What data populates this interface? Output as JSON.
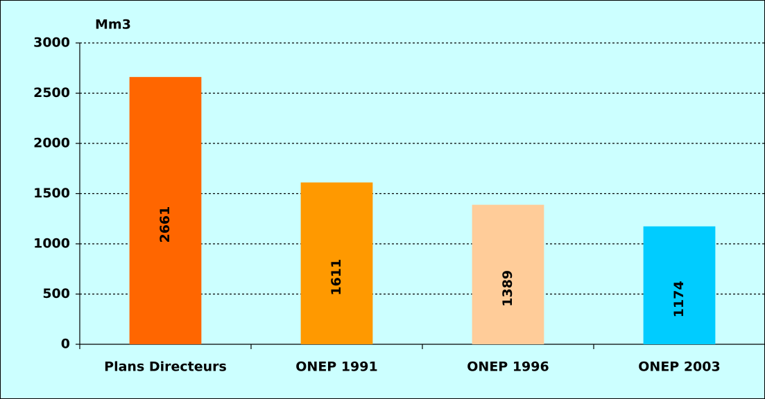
{
  "chart_data": {
    "type": "bar",
    "y_label": "Mm3",
    "categories": [
      "Plans Directeurs",
      "ONEP 1991",
      "ONEP 1996",
      "ONEP 2003"
    ],
    "values": [
      2661,
      1611,
      1389,
      1174
    ],
    "colors": [
      "#ff6600",
      "#ff9900",
      "#ffcc99",
      "#00ccff"
    ],
    "ylim": [
      0,
      3000
    ],
    "yticks": [
      0,
      500,
      1000,
      1500,
      2000,
      2500,
      3000
    ],
    "grid": true
  }
}
